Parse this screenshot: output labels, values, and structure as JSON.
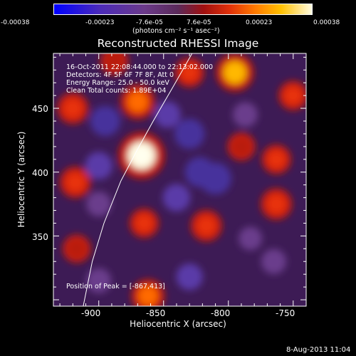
{
  "colorbar": {
    "tick_labels": [
      "-0.00038",
      "-0.00023",
      "-7.6e-05",
      "7.6e-05",
      "0.00023",
      "0.00038"
    ],
    "unit_label": "(photons cm⁻² s⁻¹ asec⁻²)"
  },
  "plot": {
    "title": "Reconstructed RHESSI Image",
    "info_lines": [
      "16-Oct-2011 22:08:44.000 to 22:13:02.000",
      "Detectors: 4F 5F 6F 7F 8F, Att 0",
      "Energy Range: 25.0 - 50.0 keV",
      "Clean    Total counts: 1.89E+04"
    ],
    "peak_label": "Position of Peak = [-867,413]",
    "footer_date": "8-Aug-2013 11:04"
  },
  "chart_data": {
    "type": "heatmap",
    "title": "Reconstructed RHESSI Image",
    "xlabel": "Heliocentric X (arcsec)",
    "ylabel": "Heliocentric Y (arcsec)",
    "xlim": [
      -935,
      -740
    ],
    "ylim": [
      295,
      493
    ],
    "x_ticks": [
      -900,
      -850,
      -800,
      -750
    ],
    "y_ticks": [
      350,
      400,
      450
    ],
    "x_tick_labels": [
      "-900",
      "-850",
      "-800",
      "-750"
    ],
    "y_tick_labels": [
      "350",
      "400",
      "450"
    ],
    "color_range": [
      -0.00038,
      0.00038
    ],
    "peak_position": [
      -867,
      413
    ],
    "sources": [
      {
        "x": -867,
        "y": 413,
        "value": 0.00038
      },
      {
        "x": -870,
        "y": 455,
        "value": 0.0002
      },
      {
        "x": -795,
        "y": 478,
        "value": 0.00025
      },
      {
        "x": -920,
        "y": 450,
        "value": 0.00015
      },
      {
        "x": -862,
        "y": 303,
        "value": 0.00018
      },
      {
        "x": -817,
        "y": 358,
        "value": 0.00015
      },
      {
        "x": -865,
        "y": 360,
        "value": 0.00012
      },
      {
        "x": -763,
        "y": 375,
        "value": 0.00015
      },
      {
        "x": -763,
        "y": 410,
        "value": 0.00012
      },
      {
        "x": -918,
        "y": 392,
        "value": 0.00015
      },
      {
        "x": -830,
        "y": 478,
        "value": 0.00012
      },
      {
        "x": -750,
        "y": 460,
        "value": 0.00012
      },
      {
        "x": -917,
        "y": 340,
        "value": 0.0001
      },
      {
        "x": -790,
        "y": 420,
        "value": 0.0001
      },
      {
        "x": -888,
        "y": 487,
        "value": 0.0001
      },
      {
        "x": -895,
        "y": 440,
        "value": -0.00025
      },
      {
        "x": -830,
        "y": 430,
        "value": -0.00025
      },
      {
        "x": -822,
        "y": 400,
        "value": -0.00025
      },
      {
        "x": -810,
        "y": 395,
        "value": -0.00028
      },
      {
        "x": -900,
        "y": 405,
        "value": -0.0002
      },
      {
        "x": -840,
        "y": 380,
        "value": -0.0002
      },
      {
        "x": -787,
        "y": 445,
        "value": -0.00015
      },
      {
        "x": -900,
        "y": 315,
        "value": -0.00015
      },
      {
        "x": -830,
        "y": 318,
        "value": -0.00018
      },
      {
        "x": -765,
        "y": 330,
        "value": -0.00015
      },
      {
        "x": -847,
        "y": 445,
        "value": -0.00018
      },
      {
        "x": -900,
        "y": 375,
        "value": -0.00015
      },
      {
        "x": -783,
        "y": 348,
        "value": -0.00012
      }
    ],
    "limb_curve": [
      {
        "x": -912,
        "y": 295
      },
      {
        "x": -905,
        "y": 330
      },
      {
        "x": -896,
        "y": 360
      },
      {
        "x": -883,
        "y": 393
      },
      {
        "x": -870,
        "y": 418
      },
      {
        "x": -858,
        "y": 440
      },
      {
        "x": -842,
        "y": 468
      },
      {
        "x": -828,
        "y": 493
      }
    ]
  }
}
